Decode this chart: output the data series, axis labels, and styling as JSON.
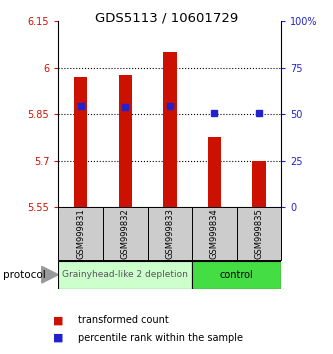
{
  "title": "GDS5113 / 10601729",
  "samples": [
    "GSM999831",
    "GSM999832",
    "GSM999833",
    "GSM999834",
    "GSM999835"
  ],
  "bar_bottoms": [
    5.55,
    5.55,
    5.55,
    5.55,
    5.55
  ],
  "bar_tops": [
    5.97,
    5.975,
    6.05,
    5.775,
    5.7
  ],
  "blue_dot_y": [
    5.875,
    5.872,
    5.875,
    5.855,
    5.855
  ],
  "ylim": [
    5.55,
    6.15
  ],
  "yticks_left": [
    5.55,
    5.7,
    5.85,
    6.0,
    6.15
  ],
  "yticks_right": [
    0,
    25,
    50,
    75,
    100
  ],
  "ytick_labels_left": [
    "5.55",
    "5.7",
    "5.85",
    "6",
    "6.15"
  ],
  "ytick_labels_right": [
    "0",
    "25",
    "50",
    "75",
    "100%"
  ],
  "bar_color": "#cc1100",
  "dot_color": "#2222cc",
  "group1_label": "Grainyhead-like 2 depletion",
  "group2_label": "control",
  "group1_color": "#ccffcc",
  "group2_color": "#44dd44",
  "protocol_label": "protocol",
  "legend_bar_label": "transformed count",
  "legend_dot_label": "percentile rank within the sample",
  "bg_color": "#ffffff",
  "xlabel_bg": "#cccccc",
  "dotted_lines": [
    5.7,
    5.85,
    6.0
  ]
}
